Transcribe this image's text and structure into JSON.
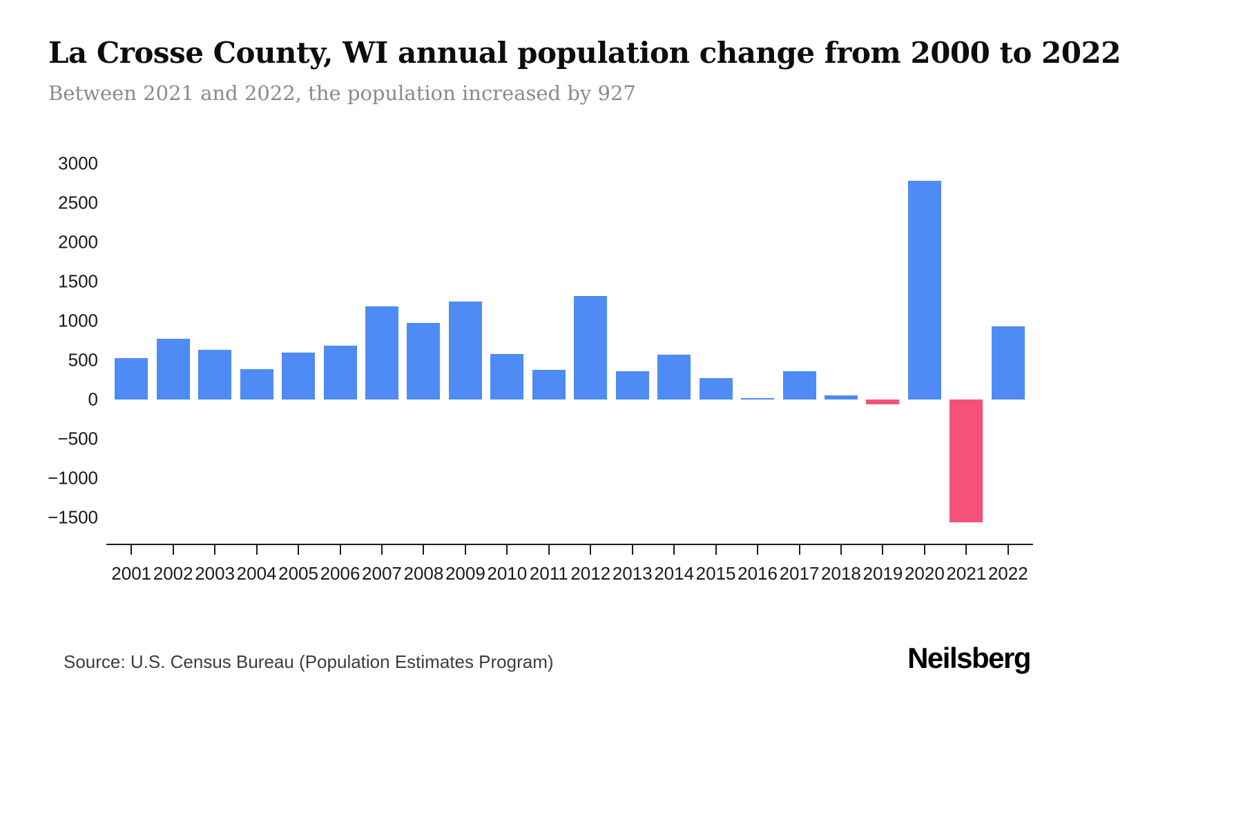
{
  "header": {
    "title": "La Crosse County, WI annual population change from 2000 to 2022",
    "subtitle": "Between 2021 and 2022, the population increased by 927"
  },
  "footer": {
    "source": "Source: U.S. Census Bureau (Population Estimates Program)",
    "brand": "Neilsberg"
  },
  "chart_data": {
    "type": "bar",
    "title": "La Crosse County, WI annual population change from 2000 to 2022",
    "subtitle": "Between 2021 and 2022, the population increased by 927",
    "categories": [
      "2001",
      "2002",
      "2003",
      "2004",
      "2005",
      "2006",
      "2007",
      "2008",
      "2009",
      "2010",
      "2011",
      "2012",
      "2013",
      "2014",
      "2015",
      "2016",
      "2017",
      "2018",
      "2019",
      "2020",
      "2021",
      "2022"
    ],
    "values": [
      530,
      770,
      630,
      390,
      600,
      680,
      1180,
      970,
      1250,
      580,
      380,
      1320,
      360,
      570,
      270,
      20,
      360,
      55,
      -60,
      2780,
      -1560,
      927
    ],
    "xlabel": "",
    "ylabel": "",
    "ylim": [
      -1500,
      3000
    ],
    "ytick_step": 500,
    "grid": "off",
    "legend": "none",
    "colors": {
      "positive": "#4e8bf4",
      "negative": "#f4527a"
    }
  }
}
